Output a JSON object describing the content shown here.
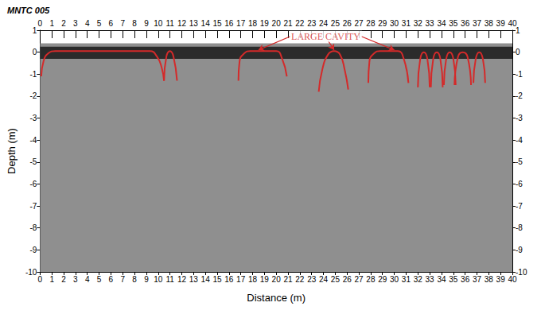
{
  "chart_data": {
    "type": "line",
    "title": "MNTC 005",
    "x_label": "Distance (m)",
    "y_label": "Depth (m)",
    "xlim": [
      0,
      40
    ],
    "xticks": [
      0,
      1,
      2,
      3,
      4,
      5,
      6,
      7,
      8,
      9,
      10,
      11,
      12,
      13,
      14,
      15,
      16,
      17,
      18,
      19,
      20,
      21,
      22,
      23,
      24,
      25,
      26,
      27,
      28,
      29,
      30,
      31,
      32,
      33,
      34,
      35,
      36,
      37,
      38,
      39,
      40
    ],
    "ylim": [
      -10,
      1
    ],
    "yticks": [
      -10,
      -9,
      -8,
      -7,
      -6,
      -5,
      -4,
      -3,
      -2,
      -1,
      0,
      1
    ],
    "grid": false,
    "record_ylim": [
      -10,
      0.4
    ],
    "reflection_zone": [
      -0.3,
      0.25
    ],
    "series": [
      {
        "color": "#d42a2a",
        "x": [
          0.1,
          0.3,
          0.7,
          1.3,
          9.3,
          9.9,
          10.3,
          10.5
        ],
        "values": [
          -1.1,
          -0.4,
          -0.05,
          0.05,
          0.05,
          -0.2,
          -0.7,
          -1.3
        ]
      },
      {
        "color": "#d42a2a",
        "x": [
          10.5,
          10.7,
          11.0,
          11.3,
          11.6
        ],
        "values": [
          -1.3,
          -0.2,
          0.05,
          -0.2,
          -1.3
        ]
      },
      {
        "color": "#d42a2a",
        "x": [
          16.8,
          16.9,
          17.3,
          17.8,
          20.0,
          20.5,
          20.9
        ],
        "values": [
          -1.3,
          -0.4,
          -0.05,
          0.05,
          0.05,
          -0.3,
          -1.1
        ]
      },
      {
        "color": "#d42a2a",
        "x": [
          23.6,
          23.9,
          24.4,
          24.9,
          25.4,
          25.8,
          26.1
        ],
        "values": [
          -1.8,
          -0.8,
          -0.1,
          0.05,
          -0.1,
          -0.8,
          -1.7
        ]
      },
      {
        "color": "#d42a2a",
        "x": [
          27.8,
          27.9,
          28.3,
          28.8,
          30.3,
          30.8,
          31.2
        ],
        "values": [
          -1.4,
          -0.4,
          -0.05,
          0.05,
          0.05,
          -0.3,
          -1.4
        ]
      },
      {
        "color": "#d42a2a",
        "x": [
          32.0,
          32.2,
          32.5,
          32.8,
          33.0
        ],
        "values": [
          -1.6,
          -0.3,
          0.0,
          -0.3,
          -1.6
        ]
      },
      {
        "color": "#d42a2a",
        "x": [
          33.1,
          33.3,
          33.6,
          33.9,
          34.1
        ],
        "values": [
          -1.6,
          -0.3,
          0.0,
          -0.3,
          -1.6
        ]
      },
      {
        "color": "#d42a2a",
        "x": [
          34.2,
          34.4,
          34.7,
          35.0,
          35.2
        ],
        "values": [
          -1.5,
          -0.3,
          0.0,
          -0.3,
          -1.5
        ]
      },
      {
        "color": "#d42a2a",
        "x": [
          35.1,
          35.4,
          35.8,
          36.2,
          36.5
        ],
        "values": [
          -1.5,
          -0.2,
          0.0,
          -0.2,
          -1.5
        ]
      },
      {
        "color": "#d42a2a",
        "x": [
          36.7,
          36.9,
          37.2,
          37.5,
          37.7
        ],
        "values": [
          -1.4,
          -0.3,
          0.0,
          -0.3,
          -1.4
        ]
      }
    ],
    "annotations": [
      {
        "text": "LARGE CAVITY",
        "color": "#d42a2a",
        "x": 24.2,
        "y": 0.72,
        "arrows": [
          {
            "from": [
              21.2,
              0.72
            ],
            "to": [
              18.5,
              0.1
            ]
          },
          {
            "from": [
              24.4,
              0.52
            ],
            "to": [
              24.9,
              0.1
            ]
          },
          {
            "from": [
              27.2,
              0.72
            ],
            "to": [
              30.0,
              0.1
            ]
          }
        ]
      }
    ]
  }
}
